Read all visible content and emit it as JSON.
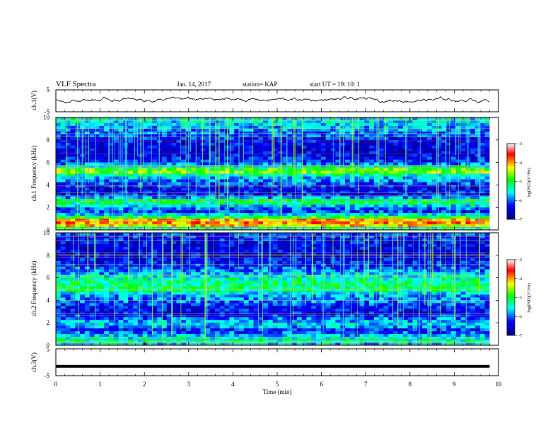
{
  "header": {
    "title": "VLF Spectra",
    "date": "Jan. 14, 2017",
    "station": "station= KAP",
    "start": "start  UT =   19: 10: 1"
  },
  "chart_data": [
    {
      "type": "line",
      "panel": "ch1-waveform",
      "ylabel": "ch.1(V)",
      "ylim": [
        -5,
        5
      ],
      "yticks": [
        "5",
        "-5"
      ],
      "xlim": [
        0,
        10
      ],
      "note_values": "Noisy waveform centered near +0.5 V, amplitude about ±1.5 V over 0–9.8 min",
      "approx_y_mean": 0.5
    },
    {
      "type": "heatmap",
      "panel": "ch1-spectrogram",
      "ylabel": "ch.1 Frequency (kHz)",
      "ylim": [
        0,
        10
      ],
      "yticks": [
        "0",
        "2",
        "4",
        "6",
        "8",
        "10"
      ],
      "xlim": [
        0,
        10
      ],
      "data_extent_x": [
        0,
        9.8
      ],
      "colorbar": {
        "label": "log(PSD)(V²/Hz)",
        "range": [
          -7,
          -3
        ],
        "ticks": [
          "-3",
          "-4",
          "-5",
          "-6",
          "-7"
        ]
      },
      "band_profile": [
        {
          "f": 0.0,
          "level": -6.2
        },
        {
          "f": 0.3,
          "level": -4.3
        },
        {
          "f": 0.8,
          "level": -3.8
        },
        {
          "f": 1.2,
          "level": -5.2
        },
        {
          "f": 1.7,
          "level": -6.3
        },
        {
          "f": 2.2,
          "level": -5.5
        },
        {
          "f": 2.6,
          "level": -5.0
        },
        {
          "f": 3.0,
          "level": -6.2
        },
        {
          "f": 3.6,
          "level": -6.5
        },
        {
          "f": 4.2,
          "level": -6.0
        },
        {
          "f": 4.8,
          "level": -5.6
        },
        {
          "f": 5.2,
          "level": -4.4
        },
        {
          "f": 5.6,
          "level": -5.3
        },
        {
          "f": 6.0,
          "level": -6.2
        },
        {
          "f": 6.6,
          "level": -6.4
        },
        {
          "f": 7.2,
          "level": -6.5
        },
        {
          "f": 8.0,
          "level": -6.3
        },
        {
          "f": 9.0,
          "level": -5.8
        },
        {
          "f": 10.0,
          "level": -5.5
        }
      ]
    },
    {
      "type": "heatmap",
      "panel": "ch2-spectrogram",
      "ylabel": "ch.2 Frequency (kHz)",
      "ylim": [
        0,
        10
      ],
      "yticks": [
        "0",
        "2",
        "4",
        "6",
        "8",
        "10"
      ],
      "xlim": [
        0,
        10
      ],
      "data_extent_x": [
        0,
        9.8
      ],
      "colorbar": {
        "label": "log(PSD)(V²/Hz)",
        "range": [
          -7,
          -3
        ],
        "ticks": [
          "-3",
          "-4",
          "-5",
          "-6",
          "-7"
        ]
      },
      "band_profile": [
        {
          "f": 0.0,
          "level": -6.0
        },
        {
          "f": 0.3,
          "level": -5.3
        },
        {
          "f": 0.8,
          "level": -5.6
        },
        {
          "f": 1.3,
          "level": -6.3
        },
        {
          "f": 1.8,
          "level": -5.6
        },
        {
          "f": 2.2,
          "level": -5.8
        },
        {
          "f": 2.8,
          "level": -6.4
        },
        {
          "f": 3.4,
          "level": -6.3
        },
        {
          "f": 4.0,
          "level": -5.9
        },
        {
          "f": 4.6,
          "level": -5.7
        },
        {
          "f": 5.0,
          "level": -5.1
        },
        {
          "f": 5.6,
          "level": -5.2
        },
        {
          "f": 6.2,
          "level": -5.6
        },
        {
          "f": 7.0,
          "level": -6.2
        },
        {
          "f": 8.0,
          "level": -6.5
        },
        {
          "f": 9.0,
          "level": -6.4
        },
        {
          "f": 10.0,
          "level": -6.1
        }
      ]
    },
    {
      "type": "line",
      "panel": "ch3-waveform",
      "ylabel": "ch.3(V)",
      "ylim": [
        -5,
        5
      ],
      "yticks": [
        "5",
        "-5"
      ],
      "xlim": [
        0,
        10
      ],
      "note_values": "Flat thick line near -1.5 V from 0 to 9.8 min",
      "approx_y_constant": -1.5
    }
  ],
  "xaxis": {
    "label": "Time (min)",
    "ticks": [
      "0",
      "1",
      "2",
      "3",
      "4",
      "5",
      "6",
      "7",
      "8",
      "9",
      "10"
    ]
  },
  "colors": {
    "axis": "#000000",
    "colormap": [
      "#00007f",
      "#0000ff",
      "#00ffff",
      "#00ff00",
      "#ffff00",
      "#ff0000",
      "#ffffff"
    ]
  }
}
